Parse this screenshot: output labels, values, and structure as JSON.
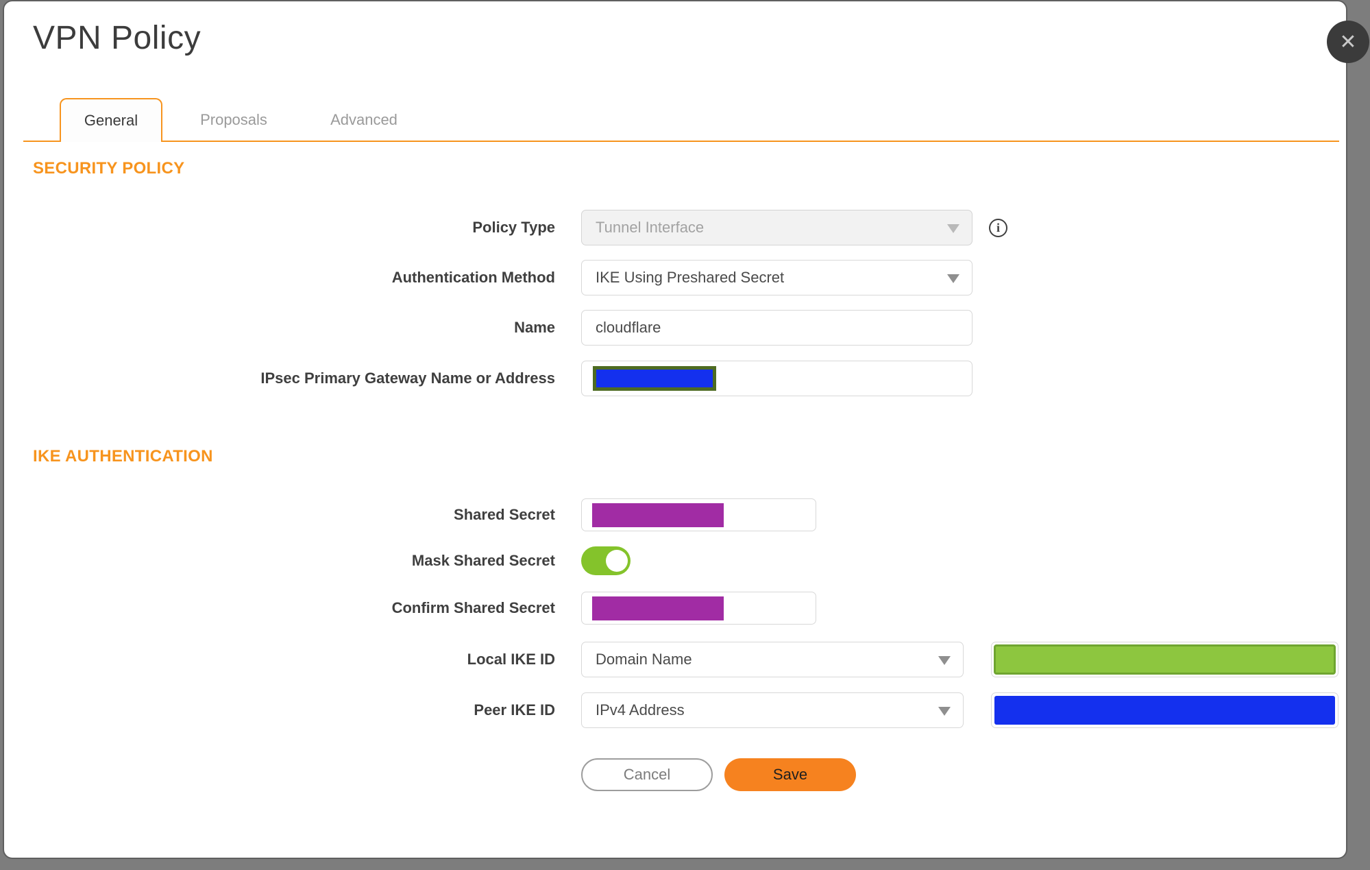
{
  "window": {
    "title": "VPN Policy",
    "close_icon": "✕"
  },
  "tabs": [
    {
      "label": "General",
      "active": true
    },
    {
      "label": "Proposals",
      "active": false
    },
    {
      "label": "Advanced",
      "active": false
    }
  ],
  "security_policy": {
    "heading": "SECURITY POLICY",
    "policy_type": {
      "label": "Policy Type",
      "value": "Tunnel Interface",
      "disabled": true,
      "info_icon": "i"
    },
    "authentication_method": {
      "label": "Authentication Method",
      "value": "IKE Using Preshared Secret"
    },
    "name": {
      "label": "Name",
      "value": "cloudflare"
    },
    "gateway": {
      "label": "IPsec Primary Gateway Name or Address",
      "value": "",
      "redacted": true
    }
  },
  "ike_authentication": {
    "heading": "IKE AUTHENTICATION",
    "shared_secret": {
      "label": "Shared Secret",
      "value": "",
      "redacted": true
    },
    "mask_shared_secret": {
      "label": "Mask Shared Secret",
      "enabled": true
    },
    "confirm_shared_secret": {
      "label": "Confirm Shared Secret",
      "value": "",
      "redacted": true
    },
    "local_ike_id": {
      "label": "Local IKE ID",
      "selected": "Domain Name",
      "value": "",
      "redacted": true
    },
    "peer_ike_id": {
      "label": "Peer IKE ID",
      "selected": "IPv4 Address",
      "value": "",
      "redacted": true
    }
  },
  "buttons": {
    "cancel": "Cancel",
    "save": "Save"
  },
  "colors": {
    "accent_orange": "#F7941E",
    "save_button_orange": "#F6821F",
    "toggle_green": "#84C32B",
    "redaction_purple": "#A12CA4",
    "redaction_blue": "#1430EE",
    "redaction_blue_border_olive": "#4E6B22",
    "redaction_green_fill": "#8DC63F",
    "redaction_green_border": "#6FA530"
  }
}
